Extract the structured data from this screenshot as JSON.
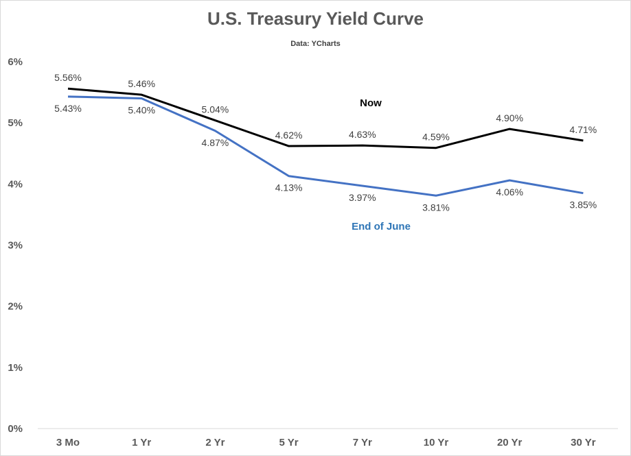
{
  "chart_data": {
    "type": "line",
    "title": "U.S. Treasury Yield Curve",
    "subtitle": "Data: YCharts",
    "categories": [
      "3 Mo",
      "1 Yr",
      "2 Yr",
      "5 Yr",
      "7 Yr",
      "10 Yr",
      "20 Yr",
      "30 Yr"
    ],
    "ylim": [
      0,
      6
    ],
    "yticks": [
      "0%",
      "1%",
      "2%",
      "3%",
      "4%",
      "5%",
      "6%"
    ],
    "grid": false,
    "series": [
      {
        "name": "Now",
        "color": "#000000",
        "values": [
          5.56,
          5.46,
          5.04,
          4.62,
          4.63,
          4.59,
          4.9,
          4.71
        ],
        "labels": [
          "5.56%",
          "5.46%",
          "5.04%",
          "4.62%",
          "4.63%",
          "4.59%",
          "4.90%",
          "4.71%"
        ]
      },
      {
        "name": "End of June",
        "color": "#4472c4",
        "label_color": "#2e75b6",
        "values": [
          5.43,
          5.4,
          4.87,
          4.13,
          3.97,
          3.81,
          4.06,
          3.85
        ],
        "labels": [
          "5.43%",
          "5.40%",
          "4.87%",
          "4.13%",
          "3.97%",
          "3.81%",
          "4.06%",
          "3.85%"
        ]
      }
    ]
  }
}
